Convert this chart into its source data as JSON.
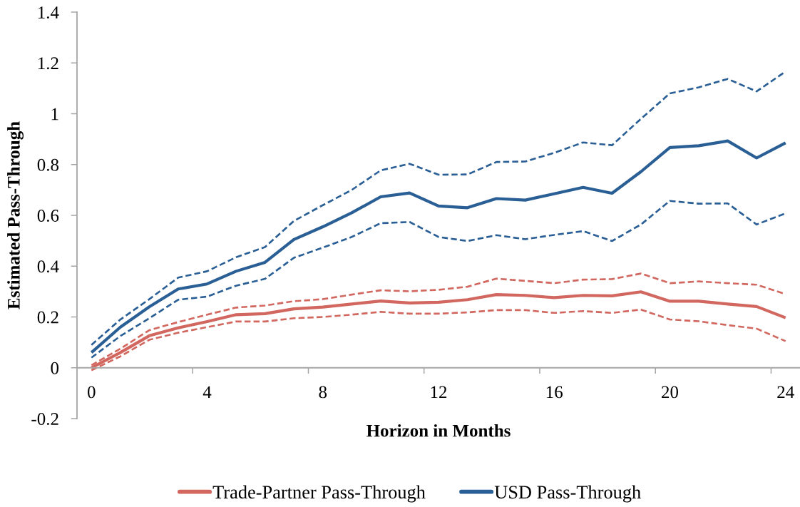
{
  "chart_data": {
    "type": "line",
    "xlabel": "Horizon in Months",
    "ylabel": "Estimated Pass-Through",
    "categories": [
      "0",
      null,
      null,
      null,
      "4",
      null,
      null,
      null,
      "8",
      null,
      null,
      null,
      "12",
      null,
      null,
      null,
      "16",
      null,
      null,
      null,
      "20",
      null,
      null,
      null,
      "24"
    ],
    "series": [
      {
        "color": "#d1675f",
        "line_style": "dashed",
        "values": [
          -0.01,
          0.045,
          0.11,
          0.138,
          0.16,
          0.182,
          0.182,
          0.195,
          0.2,
          0.209,
          0.22,
          0.213,
          0.213,
          0.218,
          0.227,
          0.227,
          0.216,
          0.223,
          0.216,
          0.229,
          0.19,
          0.183,
          0.168,
          0.154,
          0.105
        ]
      },
      {
        "color": "#d1675f",
        "line_style": "dashed",
        "values": [
          0.01,
          0.075,
          0.148,
          0.18,
          0.209,
          0.237,
          0.245,
          0.262,
          0.27,
          0.288,
          0.305,
          0.301,
          0.307,
          0.319,
          0.351,
          0.342,
          0.333,
          0.347,
          0.349,
          0.371,
          0.333,
          0.34,
          0.333,
          0.327,
          0.29
        ]
      },
      {
        "name": "Trade-Partner Pass-Through",
        "color": "#d1675f",
        "line_style": "solid",
        "values": [
          0.0,
          0.06,
          0.126,
          0.157,
          0.182,
          0.209,
          0.213,
          0.232,
          0.239,
          0.251,
          0.263,
          0.255,
          0.258,
          0.268,
          0.288,
          0.285,
          0.276,
          0.285,
          0.283,
          0.299,
          0.262,
          0.262,
          0.251,
          0.241,
          0.197
        ]
      },
      {
        "color": "#2a5f96",
        "line_style": "dashed",
        "values": [
          0.04,
          0.125,
          0.195,
          0.268,
          0.28,
          0.323,
          0.35,
          0.433,
          0.473,
          0.515,
          0.569,
          0.574,
          0.515,
          0.499,
          0.522,
          0.506,
          0.523,
          0.538,
          0.499,
          0.564,
          0.657,
          0.646,
          0.647,
          0.564,
          0.608
        ]
      },
      {
        "color": "#2a5f96",
        "line_style": "dashed",
        "values": [
          0.09,
          0.19,
          0.27,
          0.355,
          0.38,
          0.435,
          0.475,
          0.578,
          0.64,
          0.7,
          0.777,
          0.803,
          0.76,
          0.761,
          0.81,
          0.812,
          0.846,
          0.887,
          0.876,
          0.98,
          1.08,
          1.104,
          1.137,
          1.088,
          1.166
        ]
      },
      {
        "name": "USD Pass-Through",
        "color": "#2a5f96",
        "line_style": "solid",
        "values": [
          0.06,
          0.16,
          0.24,
          0.31,
          0.33,
          0.38,
          0.415,
          0.505,
          0.555,
          0.61,
          0.673,
          0.688,
          0.637,
          0.63,
          0.666,
          0.66,
          0.685,
          0.71,
          0.687,
          0.772,
          0.867,
          0.874,
          0.893,
          0.826,
          0.885
        ]
      }
    ],
    "ylim": [
      -0.2,
      1.4
    ],
    "yticks": [
      -0.2,
      0,
      0.2,
      0.4,
      0.6,
      0.8,
      1,
      1.2,
      1.4
    ],
    "legend": "bottom",
    "marker": "none"
  }
}
